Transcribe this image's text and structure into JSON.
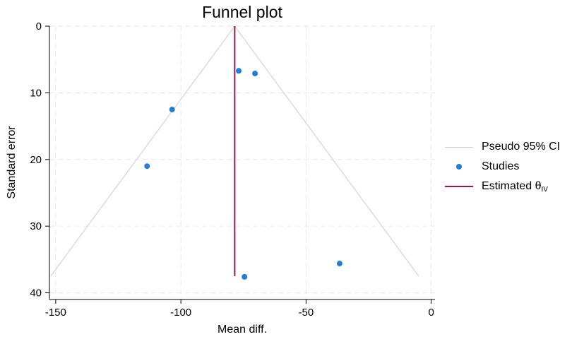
{
  "chart_data": {
    "type": "scatter",
    "title": "Funnel plot",
    "xlabel": "Mean diff.",
    "ylabel": "Standard error",
    "xlim": [
      -152.5,
      1.5
    ],
    "ylim": [
      0,
      41
    ],
    "y_reversed": true,
    "grid": true,
    "x_ticks": [
      -150,
      -100,
      -50,
      0
    ],
    "x_tick_labels": [
      "-150",
      "-100",
      "-50",
      "0"
    ],
    "y_ticks": [
      0,
      10,
      20,
      30,
      40
    ],
    "y_tick_labels": [
      "0",
      "10",
      "20",
      "30",
      "40"
    ],
    "legend_position": "right",
    "legend": [
      {
        "key": "ci",
        "label": "Pseudo 95% CI"
      },
      {
        "key": "studies",
        "label": "Studies"
      },
      {
        "key": "estimate",
        "label": "Estimated θ",
        "subscript": "IV"
      }
    ],
    "estimate": -78.5,
    "ci_z": 1.96,
    "se_max": 37.5,
    "studies": [
      {
        "x": -76.9,
        "y": 6.7
      },
      {
        "x": -70.4,
        "y": 7.1
      },
      {
        "x": -103.5,
        "y": 12.5
      },
      {
        "x": -113.5,
        "y": 21.0
      },
      {
        "x": -36.6,
        "y": 35.6
      },
      {
        "x": -74.6,
        "y": 37.6
      }
    ],
    "colors": {
      "ci": "#d6d6d6",
      "studies": "#1f7fd8",
      "estimate": "#a0154b",
      "grid": "#e6e6e6"
    }
  }
}
